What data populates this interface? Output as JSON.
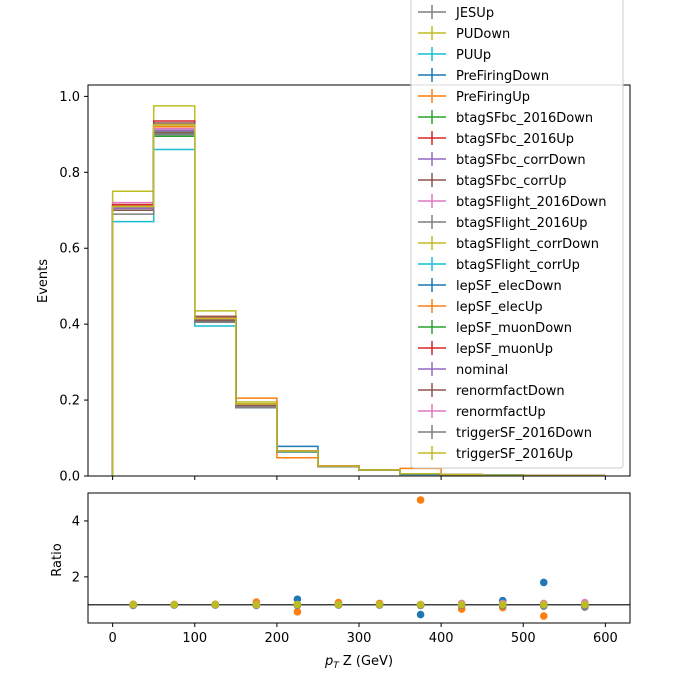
{
  "chart_data": [
    {
      "type": "line",
      "ylabel": "Events",
      "xlim": [
        -30,
        630
      ],
      "ylim": [
        0,
        1.03
      ],
      "x_ticks": [
        0,
        100,
        200,
        300,
        400,
        500,
        600
      ],
      "y_ticks": [
        0.0,
        0.2,
        0.4,
        0.6,
        0.8,
        1.0
      ],
      "y_tick_labels": [
        "0.0",
        "0.2",
        "0.4",
        "0.6",
        "0.8",
        "1.0"
      ],
      "bin_edges": [
        0,
        50,
        100,
        150,
        200,
        250,
        300,
        350,
        400,
        450,
        500,
        550,
        600
      ],
      "legend_position": "top-right",
      "series": [
        {
          "name": "JESUp",
          "color": "#7f7f7f",
          "values": [
            0.7,
            0.91,
            0.41,
            0.18,
            0.065,
            0.025,
            0.015,
            0.006,
            0.004,
            0.002,
            0.001,
            0.001
          ]
        },
        {
          "name": "PUDown",
          "color": "#bcbd22",
          "values": [
            0.75,
            0.975,
            0.435,
            0.195,
            0.065,
            0.027,
            0.016,
            0.006,
            0.004,
            0.002,
            0.001,
            0.001
          ]
        },
        {
          "name": "PUUp",
          "color": "#17becf",
          "values": [
            0.67,
            0.86,
            0.395,
            0.18,
            0.063,
            0.025,
            0.015,
            0.006,
            0.004,
            0.002,
            0.001,
            0.001
          ]
        },
        {
          "name": "PreFiringDown",
          "color": "#1f77b4",
          "values": [
            0.7,
            0.9,
            0.41,
            0.18,
            0.078,
            0.025,
            0.015,
            0.004,
            0.004,
            0.003,
            0.002,
            0.001
          ]
        },
        {
          "name": "PreFiringUp",
          "color": "#ff7f0e",
          "values": [
            0.71,
            0.92,
            0.42,
            0.205,
            0.048,
            0.027,
            0.016,
            0.02,
            0.003,
            0.002,
            0.001,
            0.001
          ]
        },
        {
          "name": "btagSFbc_2016Down",
          "color": "#2ca02c",
          "values": [
            0.7,
            0.895,
            0.41,
            0.185,
            0.065,
            0.025,
            0.015,
            0.006,
            0.004,
            0.002,
            0.001,
            0.001
          ]
        },
        {
          "name": "btagSFbc_2016Up",
          "color": "#d62728",
          "values": [
            0.71,
            0.935,
            0.42,
            0.19,
            0.066,
            0.026,
            0.016,
            0.006,
            0.004,
            0.002,
            0.001,
            0.001
          ]
        },
        {
          "name": "btagSFbc_corrDown",
          "color": "#9467bd",
          "values": [
            0.7,
            0.9,
            0.41,
            0.185,
            0.065,
            0.025,
            0.015,
            0.006,
            0.004,
            0.002,
            0.001,
            0.001
          ]
        },
        {
          "name": "btagSFbc_corrUp",
          "color": "#8c564b",
          "values": [
            0.71,
            0.93,
            0.42,
            0.19,
            0.066,
            0.026,
            0.016,
            0.006,
            0.004,
            0.002,
            0.001,
            0.001
          ]
        },
        {
          "name": "btagSFlight_2016Down",
          "color": "#e377c2",
          "values": [
            0.72,
            0.92,
            0.415,
            0.19,
            0.066,
            0.026,
            0.016,
            0.006,
            0.004,
            0.002,
            0.001,
            0.001
          ]
        },
        {
          "name": "btagSFlight_2016Up",
          "color": "#7f7f7f",
          "values": [
            0.7,
            0.91,
            0.41,
            0.185,
            0.065,
            0.025,
            0.015,
            0.006,
            0.004,
            0.002,
            0.001,
            0.001
          ]
        },
        {
          "name": "btagSFlight_corrDown",
          "color": "#bcbd22",
          "values": [
            0.715,
            0.925,
            0.415,
            0.19,
            0.066,
            0.026,
            0.016,
            0.006,
            0.004,
            0.002,
            0.001,
            0.001
          ]
        },
        {
          "name": "btagSFlight_corrUp",
          "color": "#17becf",
          "values": [
            0.705,
            0.905,
            0.41,
            0.185,
            0.065,
            0.025,
            0.015,
            0.006,
            0.004,
            0.002,
            0.001,
            0.001
          ]
        },
        {
          "name": "lepSF_elecDown",
          "color": "#1f77b4",
          "values": [
            0.7,
            0.905,
            0.41,
            0.185,
            0.065,
            0.025,
            0.015,
            0.006,
            0.004,
            0.002,
            0.001,
            0.001
          ]
        },
        {
          "name": "lepSF_elecUp",
          "color": "#ff7f0e",
          "values": [
            0.71,
            0.92,
            0.415,
            0.19,
            0.066,
            0.026,
            0.016,
            0.006,
            0.004,
            0.002,
            0.001,
            0.001
          ]
        },
        {
          "name": "lepSF_muonDown",
          "color": "#2ca02c",
          "values": [
            0.7,
            0.9,
            0.41,
            0.185,
            0.065,
            0.025,
            0.015,
            0.006,
            0.004,
            0.002,
            0.001,
            0.001
          ]
        },
        {
          "name": "lepSF_muonUp",
          "color": "#d62728",
          "values": [
            0.715,
            0.925,
            0.415,
            0.19,
            0.066,
            0.026,
            0.016,
            0.006,
            0.004,
            0.002,
            0.001,
            0.001
          ]
        },
        {
          "name": "nominal",
          "color": "#9467bd",
          "values": [
            0.705,
            0.91,
            0.41,
            0.185,
            0.065,
            0.025,
            0.015,
            0.006,
            0.004,
            0.002,
            0.001,
            0.001
          ]
        },
        {
          "name": "renormfactDown",
          "color": "#8c564b",
          "values": [
            0.7,
            0.905,
            0.41,
            0.185,
            0.065,
            0.025,
            0.015,
            0.006,
            0.004,
            0.002,
            0.001,
            0.001
          ]
        },
        {
          "name": "renormfactUp",
          "color": "#e377c2",
          "values": [
            0.71,
            0.915,
            0.415,
            0.19,
            0.066,
            0.026,
            0.016,
            0.006,
            0.004,
            0.002,
            0.001,
            0.001
          ]
        },
        {
          "name": "triggerSF_2016Down",
          "color": "#7f7f7f",
          "values": [
            0.69,
            0.9,
            0.405,
            0.18,
            0.064,
            0.025,
            0.015,
            0.006,
            0.004,
            0.002,
            0.001,
            0.001
          ]
        },
        {
          "name": "triggerSF_2016Up",
          "color": "#bcbd22",
          "values": [
            0.71,
            0.925,
            0.415,
            0.19,
            0.066,
            0.026,
            0.016,
            0.006,
            0.004,
            0.002,
            0.001,
            0.001
          ]
        }
      ]
    },
    {
      "type": "scatter",
      "xlabel_prefix": "p",
      "xlabel_subscript": "T",
      "xlabel_suffix": " Z (GeV)",
      "ylabel": "Ratio",
      "xlim": [
        -30,
        630
      ],
      "ylim": [
        0.35,
        5.0
      ],
      "x_ticks": [
        0,
        100,
        200,
        300,
        400,
        500,
        600
      ],
      "y_ticks": [
        2,
        4
      ],
      "reference_line": 1.0,
      "x": [
        25,
        75,
        125,
        175,
        225,
        275,
        325,
        375,
        425,
        475,
        525,
        575
      ],
      "series": [
        {
          "color": "#1f77b4",
          "values": [
            1.0,
            1.0,
            1.0,
            1.0,
            1.2,
            1.0,
            1.0,
            0.65,
            1.0,
            1.15,
            1.8,
            1.0
          ]
        },
        {
          "color": "#ff7f0e",
          "values": [
            1.02,
            1.0,
            1.02,
            1.1,
            0.75,
            1.08,
            1.05,
            4.75,
            0.85,
            0.9,
            0.6,
            1.0
          ]
        },
        {
          "color": "#2ca02c",
          "values": [
            1.0,
            1.0,
            1.0,
            1.0,
            1.0,
            1.0,
            1.0,
            1.0,
            1.0,
            1.0,
            1.0,
            1.0
          ]
        },
        {
          "color": "#d62728",
          "values": [
            1.01,
            1.01,
            1.01,
            1.01,
            1.01,
            1.01,
            1.01,
            1.0,
            1.01,
            1.01,
            1.01,
            1.01
          ]
        },
        {
          "color": "#9467bd",
          "values": [
            1.0,
            1.0,
            1.0,
            1.0,
            1.0,
            1.0,
            1.0,
            1.0,
            1.0,
            1.0,
            1.0,
            1.0
          ]
        },
        {
          "color": "#8c564b",
          "values": [
            0.99,
            1.0,
            1.0,
            1.0,
            1.0,
            1.0,
            1.0,
            1.0,
            1.0,
            0.98,
            0.98,
            0.95
          ]
        },
        {
          "color": "#e377c2",
          "values": [
            1.01,
            1.01,
            1.01,
            1.02,
            1.01,
            1.01,
            1.01,
            1.01,
            1.05,
            1.05,
            1.05,
            1.08
          ]
        },
        {
          "color": "#7f7f7f",
          "values": [
            0.98,
            0.99,
            0.99,
            0.98,
            0.98,
            0.99,
            0.99,
            0.98,
            0.98,
            0.97,
            0.95,
            0.92
          ]
        },
        {
          "color": "#bcbd22",
          "values": [
            1.01,
            1.01,
            1.01,
            1.01,
            1.01,
            1.01,
            1.01,
            1.01,
            1.01,
            1.01,
            1.01,
            1.01
          ]
        }
      ]
    }
  ]
}
